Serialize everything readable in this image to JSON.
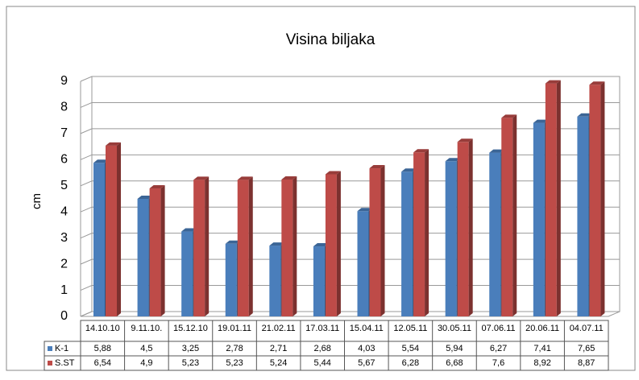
{
  "chart_data": {
    "type": "bar3d",
    "title": "Visina biljaka",
    "y_label": "cm",
    "categories": [
      "14.10.10",
      "9.11.10.",
      "15.12.10",
      "19.01.11",
      "21.02.11",
      "17.03.11",
      "15.04.11",
      "12.05.11",
      "30.05.11",
      "07.06.11",
      "20.06.11",
      "04.07.11"
    ],
    "series": [
      {
        "name": "K-1",
        "color": "#4a7ebb",
        "values": [
          5.88,
          4.5,
          3.25,
          2.78,
          2.71,
          2.68,
          4.03,
          5.54,
          5.94,
          6.27,
          7.41,
          7.65
        ],
        "value_labels": [
          "5,88",
          "4,5",
          "3,25",
          "2,78",
          "2,71",
          "2,68",
          "4,03",
          "5,54",
          "5,94",
          "6,27",
          "7,41",
          "7,65"
        ]
      },
      {
        "name": "S.ST",
        "color": "#be4b48",
        "values": [
          6.54,
          4.9,
          5.23,
          5.23,
          5.24,
          5.44,
          5.67,
          6.28,
          6.68,
          7.6,
          8.92,
          8.87
        ],
        "value_labels": [
          "6,54",
          "4,9",
          "5,23",
          "5,23",
          "5,24",
          "5,44",
          "5,67",
          "6,28",
          "6,68",
          "7,6",
          "8,92",
          "8,87"
        ]
      }
    ],
    "ylim": [
      0,
      9
    ],
    "yticks": [
      0,
      1,
      2,
      3,
      4,
      5,
      6,
      7,
      8,
      9
    ],
    "grid": true,
    "data_table": true
  }
}
